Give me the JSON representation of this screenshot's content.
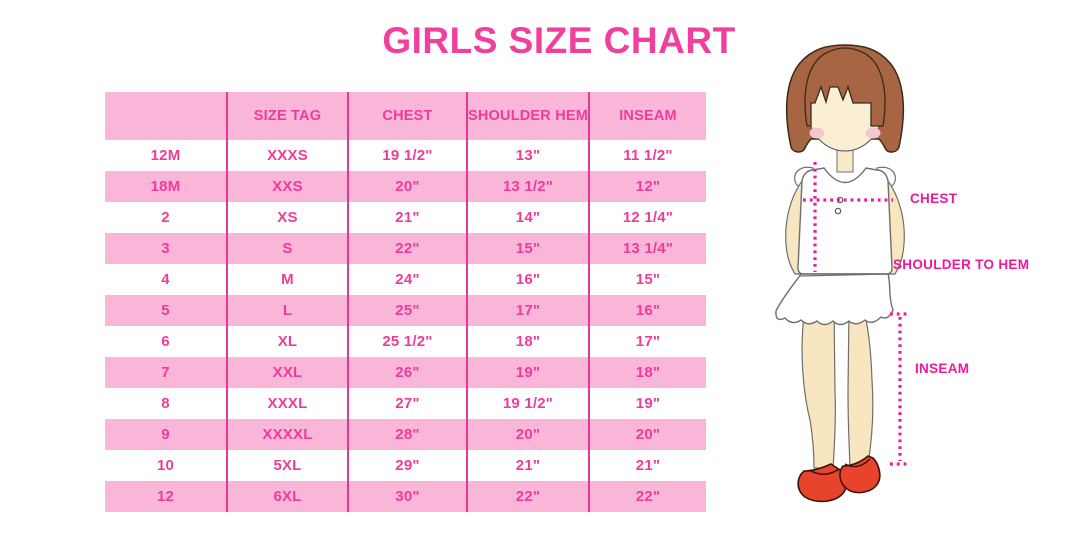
{
  "chart_data": {
    "type": "table",
    "title": "GIRLS SIZE CHART",
    "columns": [
      "",
      "SIZE TAG",
      "CHEST",
      "SHOULDER HEM",
      "INSEAM"
    ],
    "rows": [
      [
        "12M",
        "XXXS",
        "19 1/2\"",
        "13\"",
        "11 1/2\""
      ],
      [
        "18M",
        "XXS",
        "20\"",
        "13 1/2\"",
        "12\""
      ],
      [
        "2",
        "XS",
        "21\"",
        "14\"",
        "12 1/4\""
      ],
      [
        "3",
        "S",
        "22\"",
        "15\"",
        "13 1/4\""
      ],
      [
        "4",
        "M",
        "24\"",
        "16\"",
        "15\""
      ],
      [
        "5",
        "L",
        "25\"",
        "17\"",
        "16\""
      ],
      [
        "6",
        "XL",
        "25 1/2\"",
        "18\"",
        "17\""
      ],
      [
        "7",
        "XXL",
        "26\"",
        "19\"",
        "18\""
      ],
      [
        "8",
        "XXXL",
        "27\"",
        "19 1/2\"",
        "19\""
      ],
      [
        "9",
        "XXXXL",
        "28\"",
        "20\"",
        "20\""
      ],
      [
        "10",
        "5XL",
        "29\"",
        "21\"",
        "21\""
      ],
      [
        "12",
        "6XL",
        "30\"",
        "22\"",
        "22\""
      ]
    ],
    "row_stripe_pattern": "white/pink alternating, header pink",
    "measurement_labels": {
      "chest": "CHEST",
      "shoulder_to_hem": "SHOULDER TO HEM",
      "inseam": "INSEAM"
    },
    "legend_position": "none",
    "grid": "vertical column dividers only"
  },
  "colors": {
    "title_pink": "#f13f9d",
    "row_pink": "#f9b6d9",
    "divider_pink": "#e23a92",
    "table_text_pink": "#ee3c9c",
    "label_magenta": "#f0189d",
    "hair_brown": "#a86543",
    "skin_tone": "#f9e9c9",
    "blush_pink": "#f4c6ce",
    "shoe_red": "#e8432b",
    "garment_white": "#ffffff"
  }
}
